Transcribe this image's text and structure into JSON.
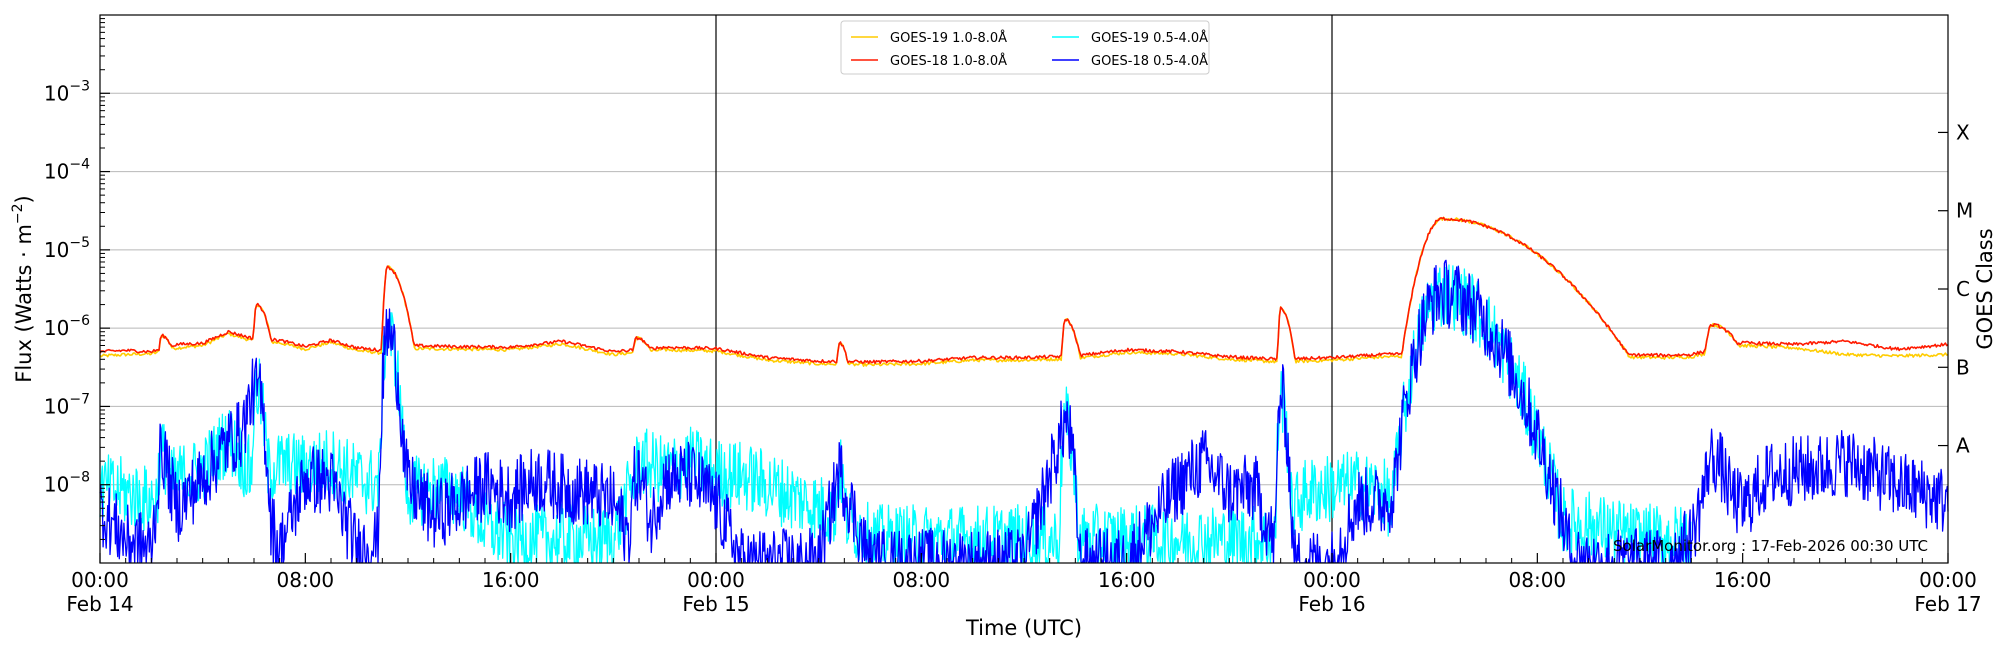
{
  "chart_data": {
    "type": "line",
    "title": "",
    "xlabel": "Time (UTC)",
    "ylabel_main": "Flux (Watts · m",
    "ylabel_exp": "−2",
    "ylabel_close": ")",
    "ylabel_right": "GOES Class",
    "y_scale": "log",
    "ylim": [
      1e-09,
      0.01
    ],
    "xlim_hours": [
      0,
      72
    ],
    "x_ticks": [
      {
        "hour": 0,
        "time": "00:00",
        "date": "Feb 14"
      },
      {
        "hour": 8,
        "time": "08:00",
        "date": ""
      },
      {
        "hour": 16,
        "time": "16:00",
        "date": ""
      },
      {
        "hour": 24,
        "time": "00:00",
        "date": "Feb 15"
      },
      {
        "hour": 32,
        "time": "08:00",
        "date": ""
      },
      {
        "hour": 40,
        "time": "16:00",
        "date": ""
      },
      {
        "hour": 48,
        "time": "00:00",
        "date": "Feb 16"
      },
      {
        "hour": 56,
        "time": "08:00",
        "date": ""
      },
      {
        "hour": 64,
        "time": "16:00",
        "date": ""
      },
      {
        "hour": 72,
        "time": "00:00",
        "date": "Feb 17"
      }
    ],
    "y_ticks": [
      {
        "exp": -8,
        "label": "10",
        "sup": "−8"
      },
      {
        "exp": -7,
        "label": "10",
        "sup": "−7"
      },
      {
        "exp": -6,
        "label": "10",
        "sup": "−6"
      },
      {
        "exp": -5,
        "label": "10",
        "sup": "−5"
      },
      {
        "exp": -4,
        "label": "10",
        "sup": "−4"
      },
      {
        "exp": -3,
        "label": "10",
        "sup": "−3"
      }
    ],
    "goes_classes": [
      {
        "label": "A",
        "exp": -7.5
      },
      {
        "label": "B",
        "exp": -6.5
      },
      {
        "label": "C",
        "exp": -5.5
      },
      {
        "label": "M",
        "exp": -4.5
      },
      {
        "label": "X",
        "exp": -3.5
      }
    ],
    "grid": true,
    "day_boundaries_hours": [
      24,
      48
    ],
    "legend_placement": "top-center",
    "legend": [
      {
        "name": "GOES-19 1.0-8.0Å",
        "color": "#ffcc00"
      },
      {
        "name": "GOES-19 0.5-4.0Å",
        "color": "#00ffff"
      },
      {
        "name": "GOES-18 1.0-8.0Å",
        "color": "#ff1a00"
      },
      {
        "name": "GOES-18 0.5-4.0Å",
        "color": "#0000ff"
      }
    ],
    "credit": "SolarMonitor.org : 17-Feb-2026 00:30 UTC",
    "events": [
      {
        "peak_hour": 2.4,
        "long_flux": 8e-07,
        "short_flux": 2.5e-08,
        "width": 0.3
      },
      {
        "peak_hour": 6.1,
        "long_flux": 2e-06,
        "short_flux": 1.7e-07,
        "width": 0.25
      },
      {
        "peak_hour": 11.2,
        "long_flux": 6e-06,
        "short_flux": 9e-07,
        "width": 0.3
      },
      {
        "peak_hour": 20.9,
        "long_flux": 7.5e-07,
        "short_flux": 1.3e-08,
        "width": 0.4
      },
      {
        "peak_hour": 28.8,
        "long_flux": 6.5e-07,
        "short_flux": 1.5e-08,
        "width": 0.2
      },
      {
        "peak_hour": 37.6,
        "long_flux": 1.3e-06,
        "short_flux": 6.5e-08,
        "width": 0.25
      },
      {
        "peak_hour": 46.0,
        "long_flux": 1.8e-06,
        "short_flux": 1.4e-07,
        "width": 0.2
      },
      {
        "peak_hour": 52.3,
        "long_flux": 2.5e-05,
        "short_flux": 2.8e-06,
        "width": 1.6
      },
      {
        "peak_hour": 62.8,
        "long_flux": 1.1e-06,
        "short_flux": 2.2e-08,
        "width": 0.6
      }
    ],
    "series": [
      {
        "name": "GOES-19 1.0-8.0Å",
        "color": "#ffcc00",
        "points": [
          [
            0,
            4.4e-07
          ],
          [
            1,
            4.6e-07
          ],
          [
            2,
            4.7e-07
          ],
          [
            3,
            5.6e-07
          ],
          [
            4,
            6e-07
          ],
          [
            5,
            8.5e-07
          ],
          [
            6,
            6.8e-07
          ],
          [
            7,
            6.5e-07
          ],
          [
            8,
            5.4e-07
          ],
          [
            9,
            6.6e-07
          ],
          [
            10,
            5.2e-07
          ],
          [
            11,
            4.8e-07
          ],
          [
            12,
            5.5e-07
          ],
          [
            14,
            5.4e-07
          ],
          [
            16,
            5.3e-07
          ],
          [
            18,
            6.3e-07
          ],
          [
            20,
            4.6e-07
          ],
          [
            22,
            5.3e-07
          ],
          [
            24,
            5.1e-07
          ],
          [
            26,
            3.9e-07
          ],
          [
            28,
            3.5e-07
          ],
          [
            30,
            3.4e-07
          ],
          [
            32,
            3.5e-07
          ],
          [
            34,
            3.9e-07
          ],
          [
            36,
            3.9e-07
          ],
          [
            38,
            4.1e-07
          ],
          [
            40,
            4.9e-07
          ],
          [
            42,
            4.7e-07
          ],
          [
            44,
            4e-07
          ],
          [
            46,
            3.7e-07
          ],
          [
            48,
            3.9e-07
          ],
          [
            50,
            4.3e-07
          ],
          [
            51.5,
            4.4e-07
          ],
          [
            55,
            5.5e-07
          ],
          [
            57,
            4.4e-07
          ],
          [
            59,
            4.3e-07
          ],
          [
            61,
            4.2e-07
          ],
          [
            62,
            4.3e-07
          ],
          [
            64,
            6e-07
          ],
          [
            66,
            5.6e-07
          ],
          [
            68,
            4.6e-07
          ],
          [
            70,
            4.4e-07
          ],
          [
            72,
            4.6e-07
          ]
        ]
      },
      {
        "name": "GOES-18 1.0-8.0Å",
        "color": "#ff1a00",
        "points": [
          [
            0,
            5e-07
          ],
          [
            1,
            5.2e-07
          ],
          [
            2,
            5e-07
          ],
          [
            3,
            6.2e-07
          ],
          [
            4,
            6.4e-07
          ],
          [
            5,
            9e-07
          ],
          [
            6,
            7.3e-07
          ],
          [
            7,
            7e-07
          ],
          [
            8,
            5.8e-07
          ],
          [
            9,
            7e-07
          ],
          [
            10,
            5.6e-07
          ],
          [
            11,
            5.2e-07
          ],
          [
            12,
            6e-07
          ],
          [
            14,
            5.8e-07
          ],
          [
            16,
            5.7e-07
          ],
          [
            18,
            6.8e-07
          ],
          [
            20,
            5e-07
          ],
          [
            22,
            5.7e-07
          ],
          [
            24,
            5.5e-07
          ],
          [
            26,
            4.2e-07
          ],
          [
            28,
            3.8e-07
          ],
          [
            30,
            3.7e-07
          ],
          [
            32,
            3.8e-07
          ],
          [
            34,
            4.2e-07
          ],
          [
            36,
            4.2e-07
          ],
          [
            38,
            4.4e-07
          ],
          [
            40,
            5.3e-07
          ],
          [
            42,
            5e-07
          ],
          [
            44,
            4.3e-07
          ],
          [
            46,
            4e-07
          ],
          [
            48,
            4.2e-07
          ],
          [
            50,
            4.6e-07
          ],
          [
            51.5,
            4.8e-07
          ],
          [
            55,
            6e-07
          ],
          [
            57,
            4.8e-07
          ],
          [
            59,
            4.6e-07
          ],
          [
            61,
            4.5e-07
          ],
          [
            62,
            4.6e-07
          ],
          [
            64,
            6.5e-07
          ],
          [
            66,
            6.2e-07
          ],
          [
            68,
            6.8e-07
          ],
          [
            70,
            5.4e-07
          ],
          [
            72,
            6.2e-07
          ]
        ]
      },
      {
        "name": "GOES-19 0.5-4.0Å",
        "color": "#00ffff",
        "points": [
          [
            0,
            9e-09
          ],
          [
            1,
            8e-09
          ],
          [
            2,
            6e-09
          ],
          [
            3,
            1.2e-08
          ],
          [
            4,
            1.5e-08
          ],
          [
            5,
            4e-08
          ],
          [
            6,
            1.2e-08
          ],
          [
            7,
            1.8e-08
          ],
          [
            8,
            1.6e-08
          ],
          [
            9,
            2e-08
          ],
          [
            10,
            1.2e-08
          ],
          [
            11,
            1e-08
          ],
          [
            12,
            8e-09
          ],
          [
            13,
            9e-09
          ],
          [
            14,
            8e-09
          ],
          [
            15,
            3e-09
          ],
          [
            16,
            2e-09
          ],
          [
            17,
            2e-09
          ],
          [
            18,
            2e-09
          ],
          [
            20,
            2e-09
          ],
          [
            21,
            2e-08
          ],
          [
            22,
            1.5e-08
          ],
          [
            23,
            2e-08
          ],
          [
            24,
            1.4e-08
          ],
          [
            25,
            1.3e-08
          ],
          [
            26,
            1e-08
          ],
          [
            27,
            7e-09
          ],
          [
            28,
            5e-09
          ],
          [
            29,
            4e-09
          ],
          [
            30,
            2e-09
          ],
          [
            32,
            2e-09
          ],
          [
            34,
            2e-09
          ],
          [
            36,
            2e-09
          ],
          [
            38,
            2e-09
          ],
          [
            40,
            2e-09
          ],
          [
            42,
            2e-09
          ],
          [
            44,
            2e-09
          ],
          [
            46,
            2e-09
          ],
          [
            46.5,
            5e-09
          ],
          [
            47,
            8e-09
          ],
          [
            48,
            9e-09
          ],
          [
            49,
            1e-08
          ],
          [
            50,
            8e-09
          ],
          [
            51,
            2e-09
          ],
          [
            54,
            2e-09
          ],
          [
            56,
            4e-09
          ],
          [
            58,
            3e-09
          ],
          [
            60,
            2e-09
          ],
          [
            62,
            2e-09
          ]
        ]
      },
      {
        "name": "GOES-18 0.5-4.0Å",
        "color": "#0000ff",
        "points": [
          [
            0,
            5e-09
          ],
          [
            1,
            2e-09
          ],
          [
            2,
            1.5e-09
          ],
          [
            2.4,
            2.5e-08
          ],
          [
            3,
            5e-09
          ],
          [
            4,
            1.2e-08
          ],
          [
            5,
            3.5e-08
          ],
          [
            5.5,
            4.5e-08
          ],
          [
            6,
            1.7e-07
          ],
          [
            6.5,
            5e-09
          ],
          [
            7,
            1.5e-09
          ],
          [
            8,
            1.2e-08
          ],
          [
            9,
            1.1e-08
          ],
          [
            10,
            1.5e-09
          ],
          [
            11,
            2e-09
          ],
          [
            11.2,
            9e-07
          ],
          [
            12,
            1e-08
          ],
          [
            13,
            4e-09
          ],
          [
            14,
            6e-09
          ],
          [
            15,
            1e-08
          ],
          [
            16,
            7e-09
          ],
          [
            17,
            1.2e-08
          ],
          [
            18,
            9e-09
          ],
          [
            19,
            8e-09
          ],
          [
            20,
            6e-09
          ],
          [
            21,
            1e-09
          ],
          [
            22,
            1.2e-08
          ],
          [
            23,
            1.3e-08
          ],
          [
            24,
            6e-09
          ],
          [
            25,
            1e-09
          ],
          [
            26,
            1e-09
          ],
          [
            28,
            1e-09
          ],
          [
            28.8,
            1.5e-08
          ],
          [
            30,
            1e-09
          ],
          [
            32,
            1e-09
          ],
          [
            36,
            1e-09
          ],
          [
            37.6,
            6.5e-08
          ],
          [
            38,
            1e-09
          ],
          [
            40,
            1e-09
          ],
          [
            42,
            1e-08
          ],
          [
            43,
            2e-08
          ],
          [
            44,
            8e-09
          ],
          [
            45,
            9e-09
          ],
          [
            46,
            1e-09
          ],
          [
            46,
            1.4e-07
          ],
          [
            46.2,
            1e-09
          ],
          [
            48,
            1e-09
          ],
          [
            49,
            6e-09
          ],
          [
            50,
            6e-09
          ],
          [
            51,
            1e-08
          ],
          [
            52.3,
            2.8e-06
          ],
          [
            53,
            5e-07
          ],
          [
            54,
            6e-08
          ],
          [
            55,
            1e-08
          ],
          [
            56,
            2e-09
          ],
          [
            58,
            1e-09
          ],
          [
            61,
            1e-09
          ],
          [
            62,
            2e-09
          ],
          [
            62.8,
            2.2e-08
          ],
          [
            63.5,
            8e-09
          ],
          [
            64,
            5e-09
          ],
          [
            65,
            1.3e-08
          ],
          [
            66,
            1.5e-08
          ],
          [
            67,
            1.6e-08
          ],
          [
            68,
            2e-08
          ],
          [
            69,
            1.5e-08
          ],
          [
            70,
            1e-08
          ],
          [
            71,
            8e-09
          ],
          [
            72,
            6e-09
          ]
        ]
      }
    ]
  }
}
